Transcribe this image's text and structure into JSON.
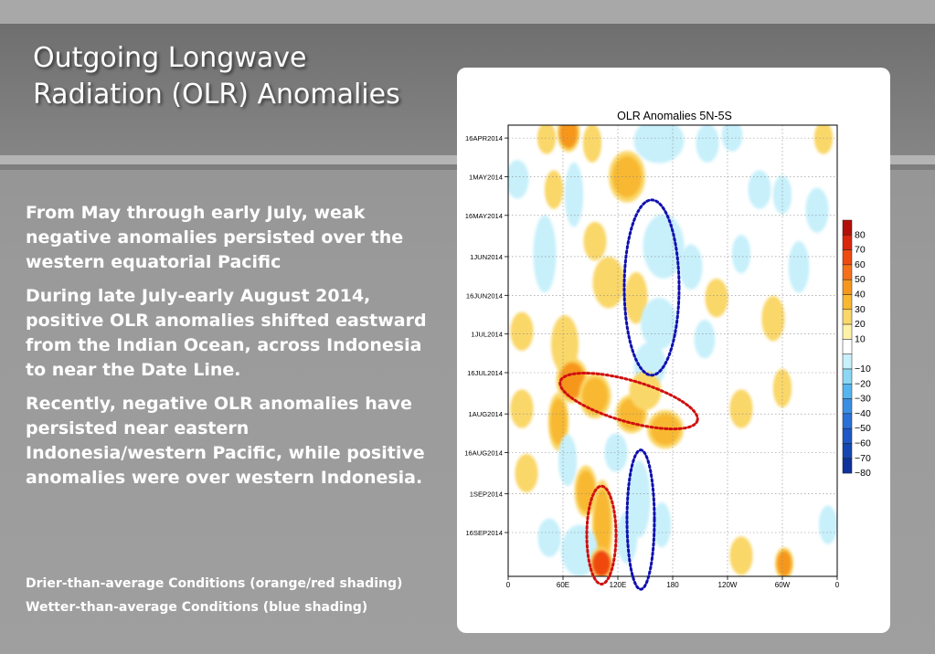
{
  "slide": {
    "title_lines": [
      "Outgoing Longwave",
      "Radiation (OLR) Anomalies"
    ],
    "paragraphs": [
      "From May through early July, weak negative anomalies persisted over the western equatorial Pacific",
      "During late July-early August 2014, positive OLR anomalies shifted eastward from the Indian Ocean, across Indonesia to near the Date Line.",
      "Recently, negative OLR anomalies have persisted near eastern Indonesia/western Pacific, while positive anomalies were over western Indonesia."
    ],
    "notes": [
      "Drier-than-average Conditions (orange/red shading)",
      "Wetter-than-average Conditions (blue shading)"
    ]
  },
  "chart_data": {
    "type": "heatmap",
    "title": "OLR Anomalies 5N-5S",
    "x_ticks": [
      {
        "label": "0",
        "lon": 0
      },
      {
        "label": "60E",
        "lon": 60
      },
      {
        "label": "120E",
        "lon": 120
      },
      {
        "label": "180",
        "lon": 180
      },
      {
        "label": "120W",
        "lon": 240
      },
      {
        "label": "60W",
        "lon": 300
      },
      {
        "label": "0",
        "lon": 360
      }
    ],
    "xlim": [
      0,
      360
    ],
    "y_ticks": [
      {
        "label": "16APR2014",
        "day": 0
      },
      {
        "label": "1MAY2014",
        "day": 15
      },
      {
        "label": "16MAY2014",
        "day": 30
      },
      {
        "label": "1JUN2014",
        "day": 46
      },
      {
        "label": "16JUN2014",
        "day": 61
      },
      {
        "label": "1JUL2014",
        "day": 76
      },
      {
        "label": "16JUL2014",
        "day": 91
      },
      {
        "label": "1AUG2014",
        "day": 107
      },
      {
        "label": "16AUG2014",
        "day": 122
      },
      {
        "label": "1SEP2014",
        "day": 138
      },
      {
        "label": "16SEP2014",
        "day": 153
      }
    ],
    "ylim": [
      -5,
      170
    ],
    "grid": true,
    "colorbar": {
      "positive": [
        {
          "value": 80,
          "color": "#b21009"
        },
        {
          "value": 70,
          "color": "#d9260c"
        },
        {
          "value": 60,
          "color": "#ef4a0f"
        },
        {
          "value": 50,
          "color": "#f5701a"
        },
        {
          "value": 40,
          "color": "#f6971d"
        },
        {
          "value": 30,
          "color": "#f8b832"
        },
        {
          "value": 20,
          "color": "#fad769"
        },
        {
          "value": 10,
          "color": "#fff2a8"
        }
      ],
      "negative": [
        {
          "value": -10,
          "color": "#c7f0fb"
        },
        {
          "value": -20,
          "color": "#8ad8f5"
        },
        {
          "value": -30,
          "color": "#55b5ef"
        },
        {
          "value": -40,
          "color": "#3a8fe3"
        },
        {
          "value": -50,
          "color": "#2a70d6"
        },
        {
          "value": -60,
          "color": "#1f58c6"
        },
        {
          "value": -70,
          "color": "#1646b0"
        },
        {
          "value": -80,
          "color": "#0e339a"
        }
      ]
    },
    "anomaly_blobs": [
      {
        "lon": 66,
        "day": -2,
        "rlon": 10,
        "rday": 6,
        "value": 40
      },
      {
        "lon": 42,
        "day": 0,
        "rlon": 8,
        "rday": 5,
        "value": 20
      },
      {
        "lon": 92,
        "day": 2,
        "rlon": 8,
        "rday": 6,
        "value": 20
      },
      {
        "lon": 165,
        "day": 1,
        "rlon": 22,
        "rday": 7,
        "value": -40
      },
      {
        "lon": 218,
        "day": 2,
        "rlon": 10,
        "rday": 6,
        "value": -20
      },
      {
        "lon": 245,
        "day": -1,
        "rlon": 9,
        "rday": 5,
        "value": -20
      },
      {
        "lon": 345,
        "day": 0,
        "rlon": 8,
        "rday": 5,
        "value": 20
      },
      {
        "lon": 130,
        "day": 15,
        "rlon": 16,
        "rday": 8,
        "value": 30
      },
      {
        "lon": 10,
        "day": 16,
        "rlon": 10,
        "rday": 6,
        "value": -20
      },
      {
        "lon": 72,
        "day": 22,
        "rlon": 8,
        "rday": 10,
        "value": -20
      },
      {
        "lon": 50,
        "day": 20,
        "rlon": 8,
        "rday": 6,
        "value": 20
      },
      {
        "lon": 275,
        "day": 20,
        "rlon": 10,
        "rday": 6,
        "value": -40
      },
      {
        "lon": 300,
        "day": 22,
        "rlon": 8,
        "rday": 6,
        "value": -20
      },
      {
        "lon": 338,
        "day": 28,
        "rlon": 10,
        "rday": 7,
        "value": -20
      },
      {
        "lon": 40,
        "day": 45,
        "rlon": 10,
        "rday": 12,
        "value": -40
      },
      {
        "lon": 95,
        "day": 40,
        "rlon": 10,
        "rday": 6,
        "value": 20
      },
      {
        "lon": 110,
        "day": 56,
        "rlon": 14,
        "rday": 8,
        "value": 20
      },
      {
        "lon": 140,
        "day": 62,
        "rlon": 10,
        "rday": 8,
        "value": 20
      },
      {
        "lon": 170,
        "day": 42,
        "rlon": 18,
        "rday": 10,
        "value": -20
      },
      {
        "lon": 165,
        "day": 72,
        "rlon": 16,
        "rday": 8,
        "value": -20
      },
      {
        "lon": 155,
        "day": 88,
        "rlon": 14,
        "rday": 7,
        "value": -20
      },
      {
        "lon": 200,
        "day": 50,
        "rlon": 10,
        "rday": 7,
        "value": -20
      },
      {
        "lon": 228,
        "day": 62,
        "rlon": 10,
        "rday": 6,
        "value": 20
      },
      {
        "lon": 255,
        "day": 45,
        "rlon": 8,
        "rday": 6,
        "value": -20
      },
      {
        "lon": 318,
        "day": 50,
        "rlon": 9,
        "rday": 8,
        "value": -20
      },
      {
        "lon": 15,
        "day": 75,
        "rlon": 10,
        "rday": 6,
        "value": 20
      },
      {
        "lon": 62,
        "day": 80,
        "rlon": 12,
        "rday": 9,
        "value": 20
      },
      {
        "lon": 215,
        "day": 78,
        "rlon": 9,
        "rday": 6,
        "value": -20
      },
      {
        "lon": 290,
        "day": 70,
        "rlon": 10,
        "rday": 7,
        "value": 20
      },
      {
        "lon": 70,
        "day": 94,
        "rlon": 14,
        "rday": 7,
        "value": 40
      },
      {
        "lon": 95,
        "day": 100,
        "rlon": 14,
        "rday": 7,
        "value": 30
      },
      {
        "lon": 55,
        "day": 110,
        "rlon": 9,
        "rday": 9,
        "value": 30
      },
      {
        "lon": 135,
        "day": 107,
        "rlon": 14,
        "rday": 6,
        "value": 30
      },
      {
        "lon": 172,
        "day": 113,
        "rlon": 16,
        "rday": 6,
        "value": 30
      },
      {
        "lon": 150,
        "day": 98,
        "rlon": 14,
        "rday": 6,
        "value": 20
      },
      {
        "lon": 300,
        "day": 97,
        "rlon": 8,
        "rday": 6,
        "value": 20
      },
      {
        "lon": 255,
        "day": 105,
        "rlon": 10,
        "rday": 6,
        "value": 20
      },
      {
        "lon": 15,
        "day": 105,
        "rlon": 10,
        "rday": 6,
        "value": 20
      },
      {
        "lon": 65,
        "day": 125,
        "rlon": 8,
        "rday": 8,
        "value": -40
      },
      {
        "lon": 118,
        "day": 122,
        "rlon": 10,
        "rday": 6,
        "value": -20
      },
      {
        "lon": 20,
        "day": 130,
        "rlon": 10,
        "rday": 6,
        "value": 20
      },
      {
        "lon": 85,
        "day": 137,
        "rlon": 10,
        "rday": 8,
        "value": 30
      },
      {
        "lon": 103,
        "day": 150,
        "rlon": 9,
        "rday": 14,
        "value": 30
      },
      {
        "lon": 143,
        "day": 140,
        "rlon": 10,
        "rday": 12,
        "value": -40
      },
      {
        "lon": 130,
        "day": 155,
        "rlon": 9,
        "rday": 8,
        "value": -20
      },
      {
        "lon": 78,
        "day": 160,
        "rlon": 16,
        "rday": 8,
        "value": -40
      },
      {
        "lon": 45,
        "day": 155,
        "rlon": 10,
        "rday": 6,
        "value": -20
      },
      {
        "lon": 102,
        "day": 165,
        "rlon": 10,
        "rday": 5,
        "value": 60
      },
      {
        "lon": 168,
        "day": 150,
        "rlon": 8,
        "rday": 7,
        "value": -20
      },
      {
        "lon": 255,
        "day": 162,
        "rlon": 10,
        "rday": 6,
        "value": 20
      },
      {
        "lon": 302,
        "day": 165,
        "rlon": 8,
        "rday": 5,
        "value": 40
      },
      {
        "lon": 350,
        "day": 150,
        "rlon": 8,
        "rday": 6,
        "value": -20
      }
    ],
    "annotations": [
      {
        "shape": "ellipse",
        "style": "dotted",
        "color": "#1010b0",
        "lon": 157,
        "day": 58,
        "rlon": 30,
        "rday": 34
      },
      {
        "shape": "ellipse",
        "style": "dotted",
        "color": "#d01010",
        "lon": 132,
        "day": 102,
        "rlon": 78,
        "rday": 8,
        "rotate": 16
      },
      {
        "shape": "ellipse",
        "style": "dotted",
        "color": "#d01010",
        "lon": 102,
        "day": 154,
        "rlon": 16,
        "rday": 19
      },
      {
        "shape": "ellipse",
        "style": "dotted",
        "color": "#1010b0",
        "lon": 145,
        "day": 148,
        "rlon": 15,
        "rday": 27
      }
    ]
  },
  "colors": {
    "positive_accent": "#f6971d",
    "negative_accent": "#55b5ef",
    "annotation_red": "#d01010",
    "annotation_blue": "#1010b0"
  }
}
